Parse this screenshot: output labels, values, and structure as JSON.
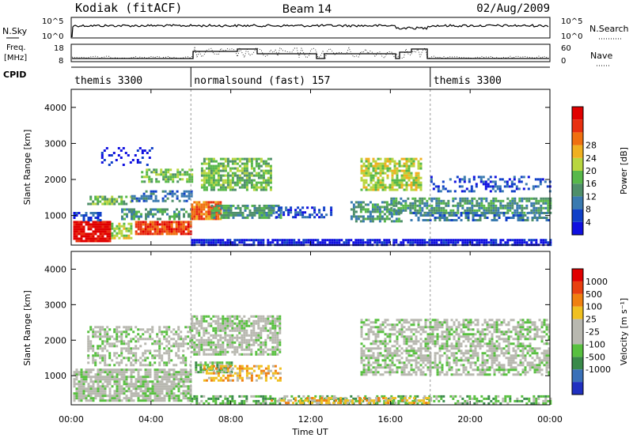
{
  "header": {
    "station": "Kodiak (fitACF)",
    "beam": "Beam 14",
    "date": "02/Aug/2009"
  },
  "top_panel": {
    "left_label": "N.Sky",
    "right_label": "N.Search",
    "left_ticks": [
      "10^5",
      "10^0"
    ],
    "right_ticks": [
      "10^5",
      "10^0"
    ]
  },
  "freq_panel": {
    "left_label_1": "Freq.",
    "left_label_2": "[MHz]",
    "right_label": "Nave",
    "left_ticks": [
      "18",
      "8"
    ],
    "right_ticks": [
      "60",
      "0"
    ]
  },
  "cpid": {
    "label": "CPID",
    "segments": [
      {
        "name": "themis 3300",
        "start_hour": 0,
        "end_hour": 6
      },
      {
        "name": "normalsound (fast) 157",
        "start_hour": 6,
        "end_hour": 18
      },
      {
        "name": "themis 3300",
        "start_hour": 18,
        "end_hour": 24
      }
    ]
  },
  "x_axis": {
    "label": "Time UT",
    "ticks": [
      "00:00",
      "04:00",
      "08:00",
      "12:00",
      "16:00",
      "20:00",
      "00:00"
    ]
  },
  "chart_data": [
    {
      "type": "heatmap",
      "xlabel": "Time UT",
      "ylabel": "Slant Range [km]",
      "xlim_hours": [
        0,
        24
      ],
      "ylim_km": [
        180,
        4500
      ],
      "yticks": [
        "1000",
        "2000",
        "3000",
        "4000"
      ],
      "colorbar": {
        "label": "Power [dB]",
        "ticks": [
          "4",
          "8",
          "12",
          "16",
          "20",
          "24",
          "28"
        ],
        "colors": [
          "#1010e0",
          "#1040c8",
          "#3a7ab0",
          "#4f8f6a",
          "#58b84a",
          "#b8d640",
          "#f0b020",
          "#f07010",
          "#e83010",
          "#e00000"
        ]
      },
      "echo_regions": [
        {
          "t0": 0.1,
          "t1": 2.0,
          "r0": 300,
          "r1": 850,
          "level": 9,
          "fill": 0.9
        },
        {
          "t0": 2.0,
          "t1": 3.0,
          "r0": 350,
          "r1": 800,
          "level": 5,
          "fill": 0.7
        },
        {
          "t0": 0.1,
          "t1": 1.5,
          "r0": 900,
          "r1": 1100,
          "level": 1,
          "fill": 0.6
        },
        {
          "t0": 3.2,
          "t1": 6.0,
          "r0": 500,
          "r1": 850,
          "level": 8,
          "fill": 0.9
        },
        {
          "t0": 2.5,
          "t1": 6.0,
          "r0": 900,
          "r1": 1200,
          "level": 3,
          "fill": 0.6
        },
        {
          "t0": 0.8,
          "t1": 3.0,
          "r0": 1350,
          "r1": 1550,
          "level": 4,
          "fill": 0.6
        },
        {
          "t0": 3.0,
          "t1": 6.0,
          "r0": 1400,
          "r1": 1700,
          "level": 2,
          "fill": 0.5
        },
        {
          "t0": 3.5,
          "t1": 6.0,
          "r0": 1950,
          "r1": 2300,
          "level": 4,
          "fill": 0.6
        },
        {
          "t0": 1.5,
          "t1": 4.0,
          "r0": 2400,
          "r1": 2900,
          "level": 0,
          "fill": 0.2
        },
        {
          "t0": 6.0,
          "t1": 7.5,
          "r0": 900,
          "r1": 1400,
          "level": 7,
          "fill": 0.9
        },
        {
          "t0": 7.0,
          "t1": 10.5,
          "r0": 950,
          "r1": 1300,
          "level": 3,
          "fill": 0.8
        },
        {
          "t0": 6.5,
          "t1": 10.0,
          "r0": 1700,
          "r1": 2600,
          "level": 4,
          "fill": 0.7
        },
        {
          "t0": 10.0,
          "t1": 13.0,
          "r0": 950,
          "r1": 1250,
          "level": 1,
          "fill": 0.5
        },
        {
          "t0": 14.5,
          "t1": 17.5,
          "r0": 1700,
          "r1": 2600,
          "level": 5,
          "fill": 0.7
        },
        {
          "t0": 14.0,
          "t1": 16.5,
          "r0": 850,
          "r1": 1400,
          "level": 3,
          "fill": 0.6
        },
        {
          "t0": 16.0,
          "t1": 24.0,
          "r0": 1100,
          "r1": 1500,
          "level": 3,
          "fill": 0.7
        },
        {
          "t0": 17.0,
          "t1": 24.0,
          "r0": 900,
          "r1": 1100,
          "level": 2,
          "fill": 0.5
        },
        {
          "t0": 18.0,
          "t1": 24.0,
          "r0": 1700,
          "r1": 2100,
          "level": 1,
          "fill": 0.3
        },
        {
          "t0": 6.0,
          "t1": 24.0,
          "r0": 200,
          "r1": 350,
          "level": 0,
          "fill": 0.8
        }
      ]
    },
    {
      "type": "heatmap",
      "xlabel": "Time UT",
      "ylabel": "Slant Range [km]",
      "xlim_hours": [
        0,
        24
      ],
      "ylim_km": [
        180,
        4500
      ],
      "yticks": [
        "1000",
        "2000",
        "3000",
        "4000"
      ],
      "colorbar": {
        "label": "Velocity [m s⁻¹]",
        "ticks": [
          "1000",
          "500",
          "100",
          "25",
          "-25",
          "-100",
          "-500",
          "-1000"
        ],
        "colors": [
          "#2030c0",
          "#3a70b8",
          "#3a8a4a",
          "#58c040",
          "#b8b8b0",
          "#b8b8b0",
          "#f0c020",
          "#f08010",
          "#e84010",
          "#e00000"
        ]
      },
      "echo_regions": [
        {
          "t0": 0.1,
          "t1": 6.0,
          "r0": 300,
          "r1": 1200,
          "level": 4,
          "fill": 0.8
        },
        {
          "t0": 0.8,
          "t1": 6.0,
          "r0": 1300,
          "r1": 2400,
          "level": 4,
          "fill": 0.5
        },
        {
          "t0": 6.2,
          "t1": 8.0,
          "r0": 1100,
          "r1": 1400,
          "level": 3,
          "fill": 0.8
        },
        {
          "t0": 6.0,
          "t1": 10.5,
          "r0": 1600,
          "r1": 2700,
          "level": 4,
          "fill": 0.7
        },
        {
          "t0": 6.5,
          "t1": 10.5,
          "r0": 850,
          "r1": 1300,
          "level": 6,
          "fill": 0.5
        },
        {
          "t0": 14.5,
          "t1": 24.0,
          "r0": 1000,
          "r1": 2600,
          "level": 4,
          "fill": 0.6
        },
        {
          "t0": 6.0,
          "t1": 24.0,
          "r0": 200,
          "r1": 450,
          "level": 3,
          "fill": 0.5
        },
        {
          "t0": 10.0,
          "t1": 18.0,
          "r0": 200,
          "r1": 400,
          "level": 6,
          "fill": 0.5
        }
      ]
    }
  ]
}
